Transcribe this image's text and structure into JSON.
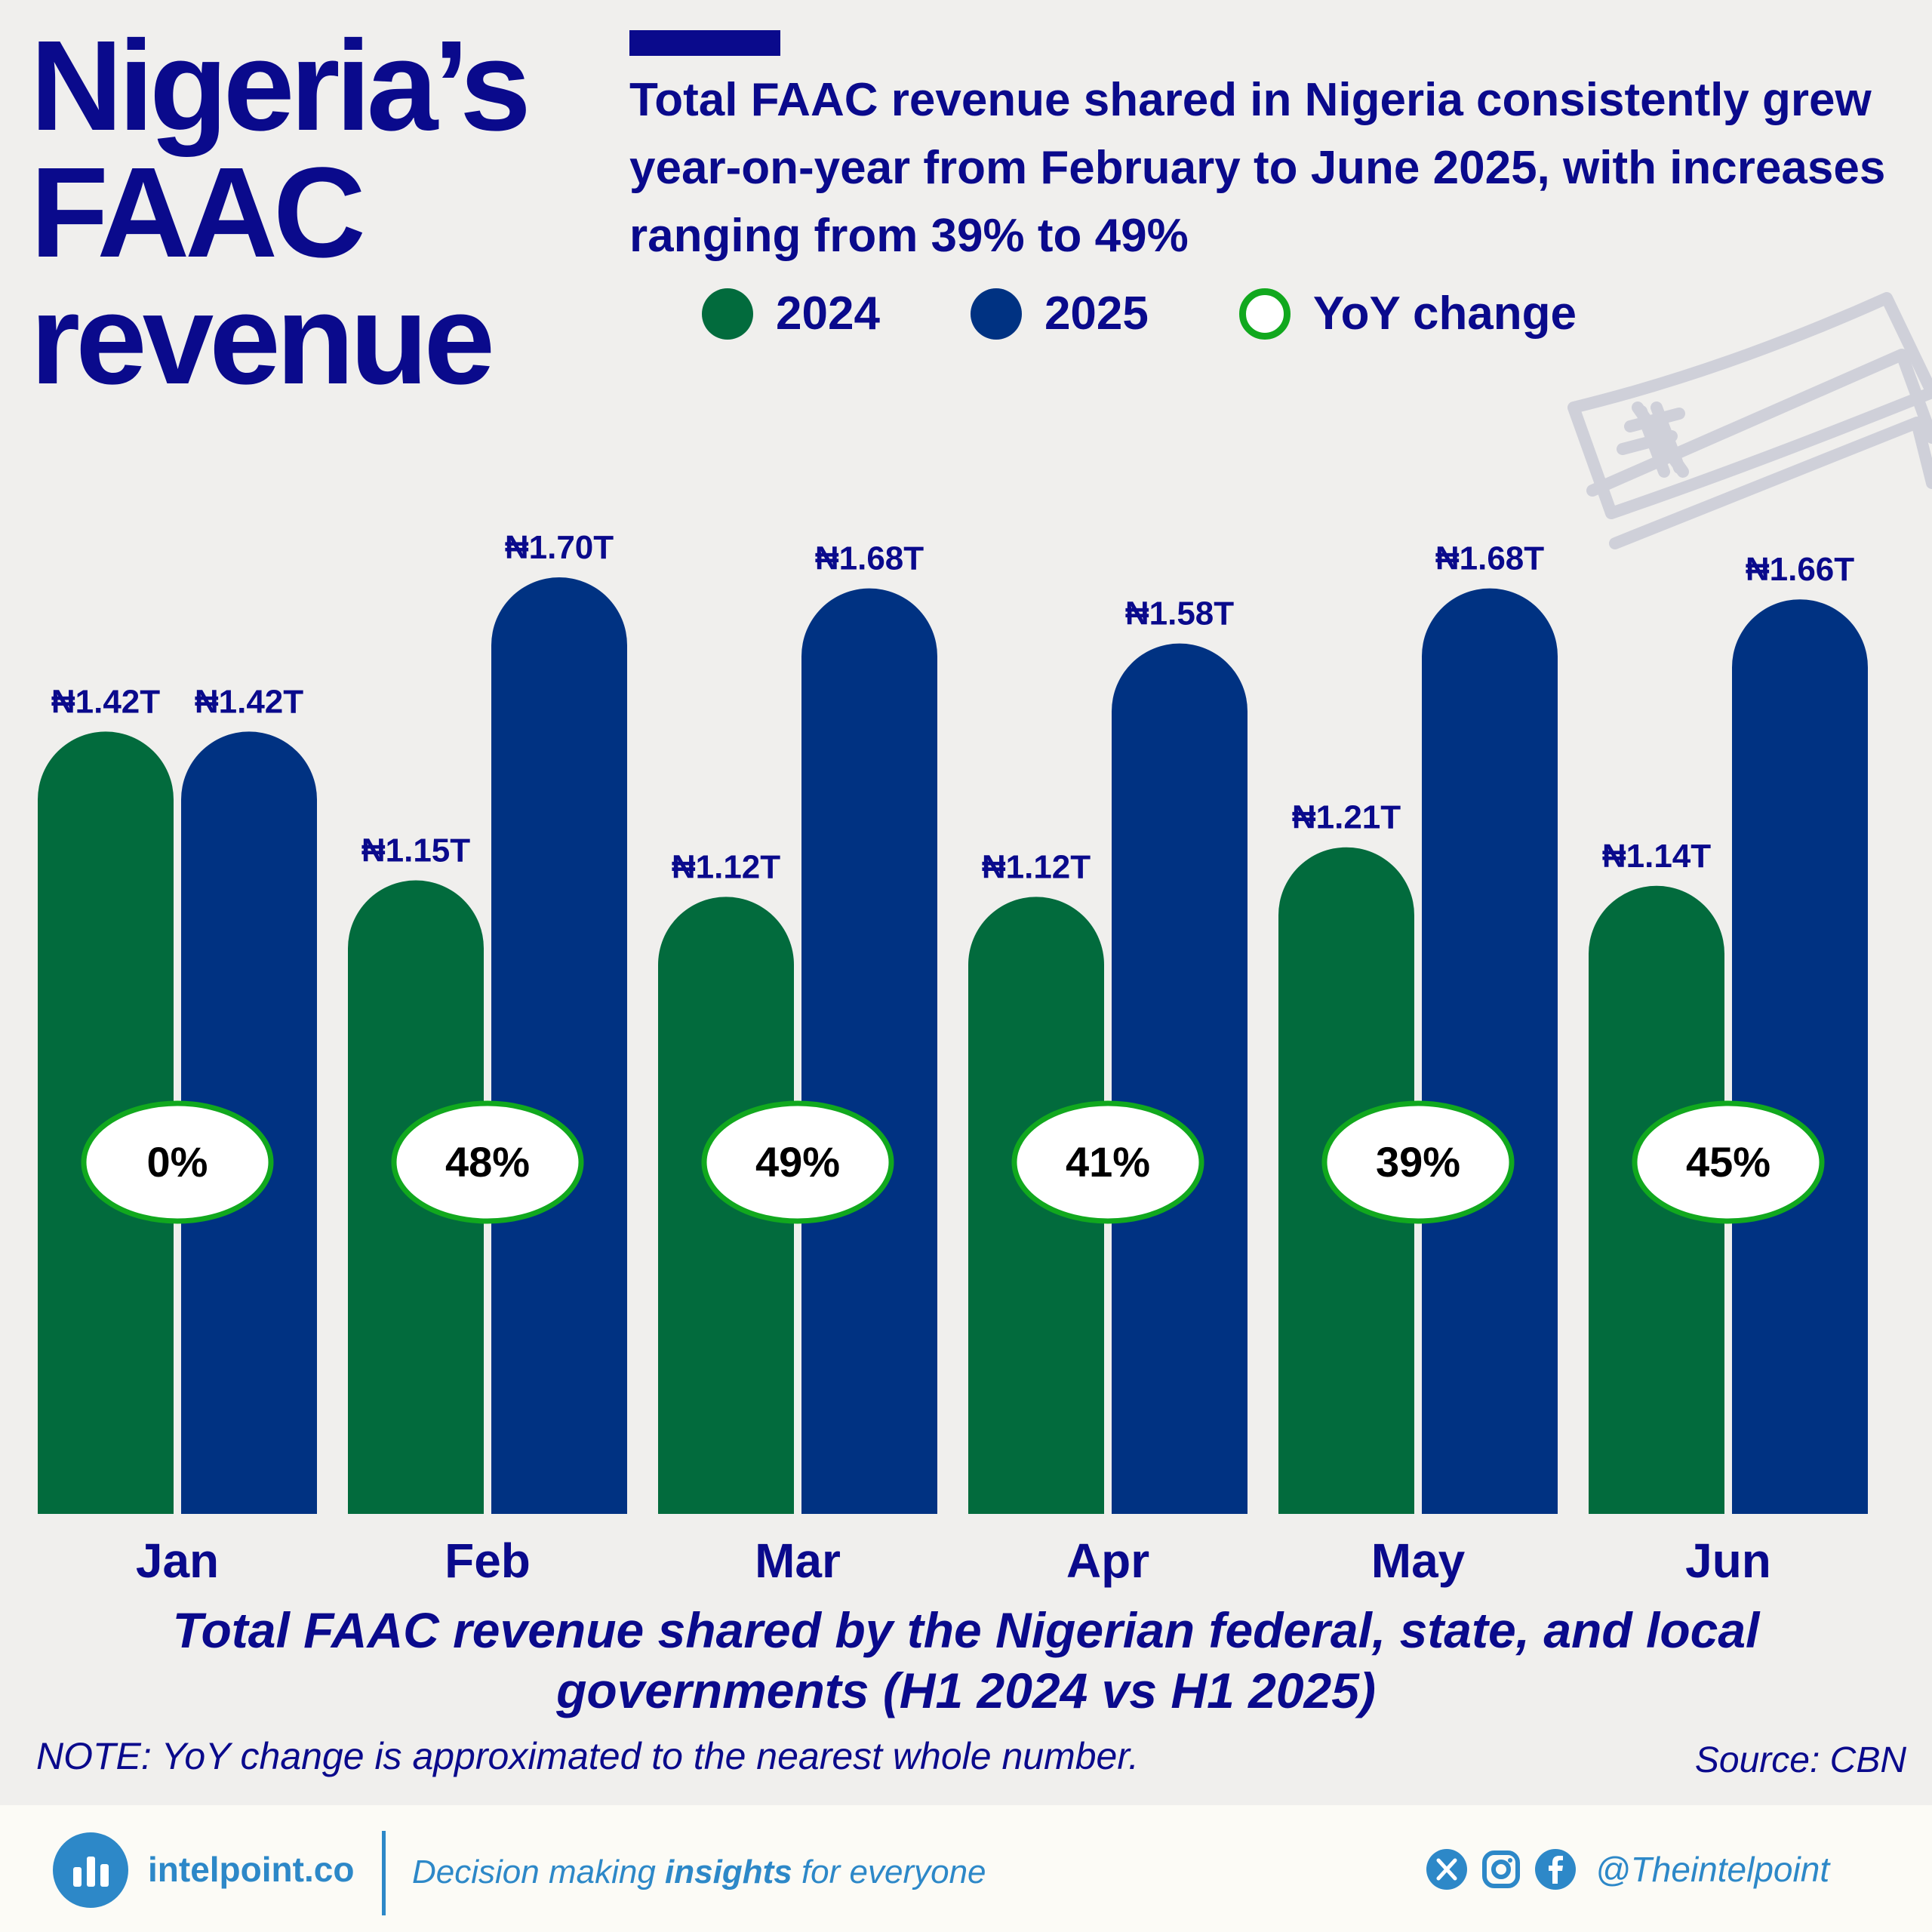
{
  "header": {
    "title_lines": [
      "Nigeria’s",
      "FAAC",
      "revenue"
    ],
    "subtitle": "Total FAAC revenue shared in Nigeria consistently grew year-on-year from February to June 2025, with increases ranging from 39% to 49%"
  },
  "legend": {
    "items": [
      {
        "label": "2024",
        "color": "#026b3d",
        "style": "filled"
      },
      {
        "label": "2025",
        "color": "#003282",
        "style": "filled"
      },
      {
        "label": "YoY change",
        "color": "#11a81e",
        "style": "outline"
      }
    ]
  },
  "chart_data": {
    "type": "bar",
    "categories": [
      "Jan",
      "Feb",
      "Mar",
      "Apr",
      "May",
      "Jun"
    ],
    "series": [
      {
        "name": "2024",
        "color": "#026b3d",
        "values": [
          1.42,
          1.15,
          1.12,
          1.12,
          1.21,
          1.14
        ],
        "labels": [
          "₦1.42T",
          "₦1.15T",
          "₦1.12T",
          "₦1.12T",
          "₦1.21T",
          "₦1.14T"
        ]
      },
      {
        "name": "2025",
        "color": "#003282",
        "values": [
          1.42,
          1.7,
          1.68,
          1.58,
          1.68,
          1.66
        ],
        "labels": [
          "₦1.42T",
          "₦1.70T",
          "₦1.68T",
          "₦1.58T",
          "₦1.68T",
          "₦1.66T"
        ]
      }
    ],
    "yoy_change": [
      "0%",
      "48%",
      "49%",
      "41%",
      "39%",
      "45%"
    ],
    "ylim": [
      0,
      1.75
    ],
    "grid": false,
    "legend_position": "top"
  },
  "caption": "Total FAAC revenue shared by the Nigerian federal, state, and local governments (H1 2024 vs H1 2025)",
  "note": "NOTE: YoY change is approximated to the nearest whole number.",
  "source": "Source: CBN",
  "footer": {
    "brand": "intelpoint.co",
    "tagline_pre": "Decision making ",
    "tagline_bold": "insights",
    "tagline_post": " for everyone",
    "handle": "@Theintelpoint",
    "social_icons": [
      "x-icon",
      "instagram-icon",
      "facebook-icon"
    ]
  }
}
